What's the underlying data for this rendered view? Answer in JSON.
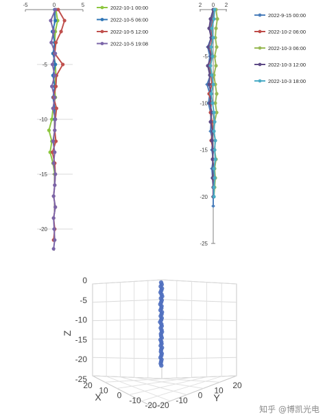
{
  "chart_data": [
    {
      "type": "line",
      "title": "",
      "x_axis": {
        "range": [
          -5,
          5
        ],
        "ticks": [
          -5,
          0,
          5
        ],
        "position": "top"
      },
      "y_axis": {
        "range": [
          -22,
          0
        ],
        "ticks": [
          0,
          -5,
          -10,
          -15,
          -20
        ]
      },
      "grid": "horizontal",
      "legend": "right",
      "series": [
        {
          "name": "2022-10-1 00:00",
          "color": "#8dc63f",
          "marker": "circle",
          "points": [
            [
              0.3,
              0
            ],
            [
              0.6,
              -1
            ],
            [
              0.2,
              -2
            ],
            [
              0.1,
              -3
            ],
            [
              -0.1,
              -4
            ],
            [
              0.2,
              -5
            ],
            [
              0.3,
              -6
            ],
            [
              0.1,
              -7
            ],
            [
              0.2,
              -8
            ],
            [
              -0.2,
              -9
            ],
            [
              -0.4,
              -10
            ],
            [
              -0.9,
              -11
            ],
            [
              -0.4,
              -12
            ],
            [
              -0.7,
              -13
            ],
            [
              -0.2,
              -14
            ],
            [
              0.1,
              -15
            ]
          ]
        },
        {
          "name": "2022-10-5 06:00",
          "color": "#2e75b6",
          "marker": "circle",
          "points": [
            [
              0.1,
              0
            ],
            [
              0.2,
              -1
            ],
            [
              -0.3,
              -2
            ],
            [
              0.1,
              -3
            ],
            [
              -0.2,
              -4
            ],
            [
              0.2,
              -5
            ],
            [
              -0.2,
              -6
            ],
            [
              0.1,
              -7
            ],
            [
              -0.2,
              -8
            ],
            [
              0.1,
              -9
            ],
            [
              0.1,
              -10
            ]
          ]
        },
        {
          "name": "2022-10-5 12:00",
          "color": "#c0504d",
          "marker": "circle",
          "points": [
            [
              0.7,
              0
            ],
            [
              1.8,
              -1
            ],
            [
              1.2,
              -2
            ],
            [
              0.3,
              -3
            ],
            [
              0.1,
              -4
            ],
            [
              1.5,
              -5
            ],
            [
              0.4,
              -6
            ],
            [
              0.3,
              -7
            ],
            [
              -0.1,
              -8
            ],
            [
              0.4,
              -9
            ],
            [
              0.2,
              -10
            ],
            [
              0.1,
              -11
            ],
            [
              0.3,
              -12
            ],
            [
              -0.3,
              -13
            ],
            [
              0.1,
              -14
            ],
            [
              0.2,
              -15
            ],
            [
              0.1,
              -16
            ],
            [
              -0.1,
              -17
            ],
            [
              0.2,
              -18
            ],
            [
              -0.1,
              -19
            ],
            [
              0.1,
              -20
            ],
            [
              -0.1,
              -21
            ]
          ]
        },
        {
          "name": "2022-10-5 19:08",
          "color": "#7a64a8",
          "marker": "circle",
          "points": [
            [
              0.2,
              0
            ],
            [
              -0.6,
              -1
            ],
            [
              -0.1,
              -2
            ],
            [
              -0.5,
              -3
            ],
            [
              0.2,
              -4
            ],
            [
              -0.3,
              -5
            ],
            [
              0.1,
              -6
            ],
            [
              -0.4,
              -7
            ],
            [
              0.1,
              -8
            ],
            [
              -0.2,
              -9
            ],
            [
              0.2,
              -10
            ],
            [
              0.1,
              -11
            ],
            [
              -0.2,
              -12
            ],
            [
              0.1,
              -13
            ],
            [
              -0.1,
              -14
            ],
            [
              0.2,
              -15
            ],
            [
              0.1,
              -16
            ],
            [
              -0.1,
              -17
            ],
            [
              0.2,
              -18
            ],
            [
              -0.1,
              -19
            ],
            [
              0,
              -20
            ],
            [
              0.1,
              -21
            ],
            [
              -0.1,
              -21.8
            ]
          ]
        }
      ]
    },
    {
      "type": "line",
      "title": "",
      "x_axis": {
        "range": [
          -2,
          2
        ],
        "ticks": [
          2,
          0,
          2
        ],
        "position": "top"
      },
      "y_axis": {
        "range": [
          -25,
          0
        ],
        "ticks": [
          0,
          -5,
          -10,
          -15,
          -20,
          -25
        ]
      },
      "grid": "none",
      "legend": "right",
      "series": [
        {
          "name": "2022-9-15 00:00",
          "color": "#4a7ebb",
          "marker": "diamond",
          "points": [
            [
              0.1,
              0
            ],
            [
              -0.2,
              -1
            ],
            [
              -0.5,
              -2
            ],
            [
              -0.3,
              -3
            ],
            [
              -0.8,
              -4
            ],
            [
              -0.5,
              -5
            ],
            [
              -0.7,
              -6
            ],
            [
              -0.4,
              -7
            ],
            [
              -0.9,
              -8
            ],
            [
              -0.5,
              -9
            ],
            [
              -0.7,
              -10
            ],
            [
              -0.4,
              -11
            ],
            [
              -0.3,
              -12
            ],
            [
              -0.4,
              -13
            ],
            [
              -0.1,
              -14
            ],
            [
              -0.2,
              -15
            ],
            [
              0,
              -16
            ],
            [
              -0.2,
              -17
            ],
            [
              -0.1,
              -18
            ],
            [
              0.1,
              -19
            ],
            [
              0,
              -20
            ],
            [
              0,
              -21
            ]
          ]
        },
        {
          "name": "2022-10-2 06:00",
          "color": "#be4b48",
          "marker": "circle",
          "points": [
            [
              0.2,
              0
            ],
            [
              0,
              -1
            ],
            [
              -0.3,
              -2
            ],
            [
              -0.1,
              -3
            ],
            [
              -0.4,
              -4
            ],
            [
              -0.2,
              -5
            ],
            [
              -0.5,
              -6
            ],
            [
              -0.3,
              -7
            ],
            [
              -0.2,
              -8
            ],
            [
              -0.6,
              -9
            ],
            [
              -0.3,
              -10
            ],
            [
              -0.4,
              -11
            ],
            [
              -0.2,
              -12
            ],
            [
              -0.1,
              -13
            ],
            [
              -0.3,
              -14
            ],
            [
              0,
              -15
            ],
            [
              -0.1,
              -16
            ],
            [
              0.1,
              -17
            ],
            [
              0,
              -18
            ],
            [
              0,
              -19
            ],
            [
              0,
              -20
            ]
          ]
        },
        {
          "name": "2022-10-3 06:00",
          "color": "#98b954",
          "marker": "circle",
          "points": [
            [
              0.4,
              0
            ],
            [
              0.6,
              -1
            ],
            [
              0.4,
              -2
            ],
            [
              0.3,
              -3
            ],
            [
              0.5,
              -4
            ],
            [
              0.2,
              -5
            ],
            [
              0.4,
              -6
            ],
            [
              0.1,
              -7
            ],
            [
              0.3,
              -8
            ],
            [
              0.5,
              -9
            ],
            [
              0.3,
              -10
            ],
            [
              0.5,
              -11
            ],
            [
              0.2,
              -12
            ],
            [
              0.1,
              -13
            ],
            [
              0.3,
              -14
            ],
            [
              0.2,
              -15
            ],
            [
              0.4,
              -16
            ],
            [
              0.2,
              -17
            ],
            [
              0.3,
              -18
            ],
            [
              0.2,
              -19
            ],
            [
              0.1,
              -20
            ]
          ]
        },
        {
          "name": "2022-10-3 12:00",
          "color": "#5e4a86",
          "marker": "circle",
          "points": [
            [
              0,
              0
            ],
            [
              -0.4,
              -1
            ],
            [
              -0.6,
              -2
            ],
            [
              -0.3,
              -3
            ],
            [
              -0.7,
              -4
            ],
            [
              -0.3,
              -5
            ],
            [
              -0.8,
              -6
            ],
            [
              -0.5,
              -7
            ],
            [
              -0.6,
              -8
            ],
            [
              -0.3,
              -9
            ],
            [
              -0.5,
              -10
            ],
            [
              -0.2,
              -11
            ],
            [
              -0.4,
              -12
            ],
            [
              -0.1,
              -13
            ],
            [
              -0.2,
              -14
            ],
            [
              0,
              -15
            ],
            [
              -0.1,
              -16
            ],
            [
              0,
              -17
            ],
            [
              -0.1,
              -18
            ],
            [
              0,
              -19
            ],
            [
              0,
              -20
            ]
          ]
        },
        {
          "name": "2022-10-3 18:00",
          "color": "#4bacc6",
          "marker": "circle",
          "points": [
            [
              0.2,
              0
            ],
            [
              0.1,
              -1
            ],
            [
              -0.2,
              -2
            ],
            [
              0,
              -3
            ],
            [
              -0.3,
              -4
            ],
            [
              -0.1,
              -5
            ],
            [
              -0.4,
              -6
            ],
            [
              -0.2,
              -7
            ],
            [
              0,
              -8
            ],
            [
              -0.3,
              -9
            ],
            [
              -0.1,
              -10
            ],
            [
              0.1,
              -11
            ],
            [
              0.2,
              -12
            ],
            [
              0.1,
              -13
            ],
            [
              0.3,
              -14
            ],
            [
              0.2,
              -15
            ],
            [
              0.3,
              -16
            ],
            [
              0.1,
              -17
            ],
            [
              0.2,
              -18
            ],
            [
              0.1,
              -19
            ],
            [
              0.1,
              -20
            ]
          ]
        }
      ]
    },
    {
      "type": "scatter",
      "title": "",
      "projection": "3d",
      "z_axis": {
        "label": "Z",
        "range": [
          -25,
          0
        ],
        "ticks": [
          0,
          -5,
          -10,
          -15,
          -20,
          -25
        ]
      },
      "x_axis": {
        "label": "X",
        "range": [
          -20,
          20
        ],
        "ticks": [
          20,
          10,
          0,
          -10,
          -20
        ]
      },
      "y_axis": {
        "label": "Y",
        "range": [
          -20,
          20
        ],
        "ticks": [
          -20,
          -10,
          0,
          10,
          20
        ]
      },
      "grid": "on",
      "marker_color": "#4f6fbf",
      "points_z": [
        0,
        -0.5,
        -1,
        -1.5,
        -2,
        -2.5,
        -3,
        -3.5,
        -4,
        -4.5,
        -5,
        -5.5,
        -6,
        -6.5,
        -7,
        -7.5,
        -8,
        -8.5,
        -9,
        -9.5,
        -10,
        -10.5,
        -11,
        -11.5,
        -12,
        -12.5,
        -13,
        -13.5,
        -14,
        -14.5,
        -15,
        -15.5,
        -16,
        -16.5,
        -17,
        -17.5,
        -18,
        -18.5,
        -19,
        -19.5,
        -20,
        -20.5,
        -21
      ],
      "points_offset": [
        0,
        0.3,
        -0.2,
        0.4,
        0.1,
        -0.3,
        0.2,
        0.5,
        -0.1,
        0.3,
        0,
        -0.4,
        0.2,
        0.1,
        -0.3,
        0.4,
        0.2,
        -0.2,
        0.3,
        0,
        -0.5,
        0.1,
        0.3,
        -0.2,
        0.2,
        0.4,
        -0.1,
        0,
        0.3,
        -0.3,
        0.1,
        0.2,
        -0.2,
        0.4,
        0,
        -0.1,
        0.3,
        0.1,
        -0.3,
        0.2,
        0,
        -0.2,
        0.1
      ]
    }
  ],
  "watermark": "知乎 @博凯光电"
}
